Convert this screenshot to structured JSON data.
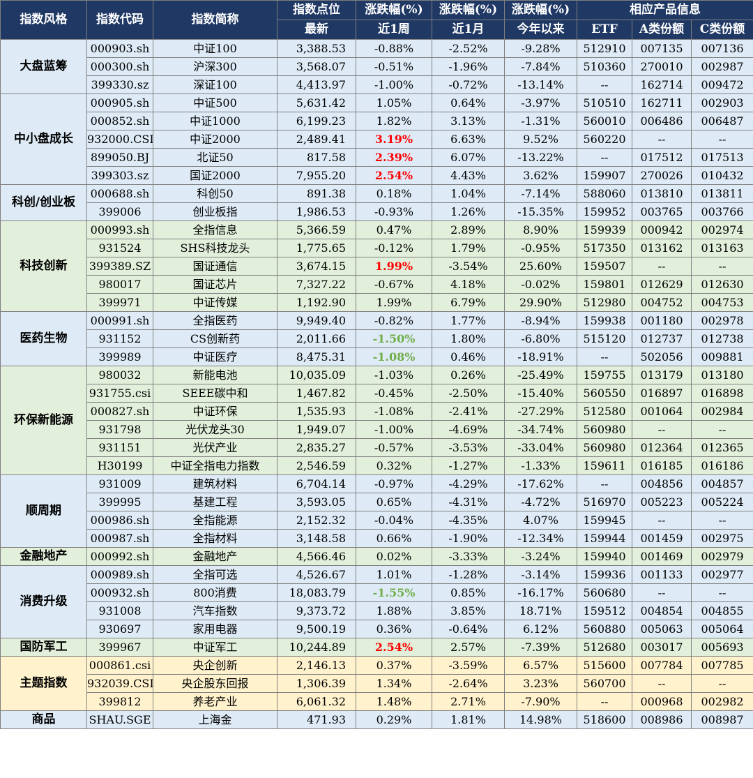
{
  "header": {
    "top": {
      "style": "指数风格",
      "code": "指数代码",
      "name": "指数简称",
      "point": "指数点位",
      "chg1": "涨跌幅(%)",
      "chg2": "涨跌幅(%)",
      "chg3": "涨跌幅(%)",
      "product": "相应产品信息"
    },
    "sub": {
      "point": "最新",
      "week": "近1周",
      "month": "近1月",
      "ytd": "今年以来",
      "etf": "ETF",
      "a": "A类份额",
      "c": "C类份额"
    }
  },
  "colors": {
    "header_bg": "#1f3864",
    "blue_band": "#deebf7",
    "green_band": "#e2efda",
    "yellow_band": "#fff2cc",
    "up_highlight": "#ff0000",
    "down_highlight": "#70ad47"
  },
  "groups": [
    {
      "style": "大盘蓝筹",
      "band": "blue",
      "rows": [
        {
          "code": "000903.sh",
          "name": "中证100",
          "point": "3,388.53",
          "week": "-0.88%",
          "month": "-2.52%",
          "ytd": "-9.28%",
          "etf": "512910",
          "a": "007135",
          "c": "007136"
        },
        {
          "code": "000300.sh",
          "name": "沪深300",
          "point": "3,568.07",
          "week": "-0.51%",
          "month": "-1.96%",
          "ytd": "-7.84%",
          "etf": "510360",
          "a": "270010",
          "c": "002987"
        },
        {
          "code": "399330.sz",
          "name": "深证100",
          "point": "4,413.97",
          "week": "-1.00%",
          "month": "-0.72%",
          "ytd": "-13.14%",
          "etf": "--",
          "a": "162714",
          "c": "009472"
        }
      ]
    },
    {
      "style": "中小盘成长",
      "band": "blue",
      "rows": [
        {
          "code": "000905.sh",
          "name": "中证500",
          "point": "5,631.42",
          "week": "1.05%",
          "month": "0.64%",
          "ytd": "-3.97%",
          "etf": "510510",
          "a": "162711",
          "c": "002903"
        },
        {
          "code": "000852.sh",
          "name": "中证1000",
          "point": "6,199.23",
          "week": "1.82%",
          "month": "3.13%",
          "ytd": "-1.31%",
          "etf": "560010",
          "a": "006486",
          "c": "006487"
        },
        {
          "code": "932000.CSI",
          "name": "中证2000",
          "point": "2,489.41",
          "week": "3.19%",
          "week_hl": "up",
          "month": "6.63%",
          "ytd": "9.52%",
          "etf": "560220",
          "a": "--",
          "c": "--"
        },
        {
          "code": "899050.BJ",
          "name": "北证50",
          "point": "817.58",
          "week": "2.39%",
          "week_hl": "up",
          "month": "6.07%",
          "ytd": "-13.22%",
          "etf": "--",
          "a": "017512",
          "c": "017513"
        },
        {
          "code": "399303.sz",
          "name": "国证2000",
          "point": "7,955.20",
          "week": "2.54%",
          "week_hl": "up",
          "month": "4.43%",
          "ytd": "3.62%",
          "etf": "159907",
          "a": "270026",
          "c": "010432"
        }
      ]
    },
    {
      "style": "科创/创业板",
      "band": "blue",
      "rows": [
        {
          "code": "000688.sh",
          "name": "科创50",
          "point": "891.38",
          "week": "0.18%",
          "month": "1.04%",
          "ytd": "-7.14%",
          "etf": "588060",
          "a": "013810",
          "c": "013811"
        },
        {
          "code": "399006",
          "name": "创业板指",
          "point": "1,986.53",
          "week": "-0.93%",
          "month": "1.26%",
          "ytd": "-15.35%",
          "etf": "159952",
          "a": "003765",
          "c": "003766"
        }
      ]
    },
    {
      "style": "科技创新",
      "band": "green",
      "rows": [
        {
          "code": "000993.sh",
          "name": "全指信息",
          "point": "5,366.59",
          "week": "0.47%",
          "month": "2.89%",
          "ytd": "8.90%",
          "etf": "159939",
          "a": "000942",
          "c": "002974"
        },
        {
          "code": "931524",
          "name": "SHS科技龙头",
          "point": "1,775.65",
          "week": "-0.12%",
          "month": "1.79%",
          "ytd": "-0.95%",
          "etf": "517350",
          "a": "013162",
          "c": "013163"
        },
        {
          "code": "399389.SZ",
          "name": "国证通信",
          "point": "3,674.15",
          "week": "1.99%",
          "week_hl": "up",
          "month": "-3.54%",
          "ytd": "25.60%",
          "etf": "159507",
          "a": "--",
          "c": "--"
        },
        {
          "code": "980017",
          "name": "国证芯片",
          "point": "7,327.22",
          "week": "-0.67%",
          "month": "4.18%",
          "ytd": "-0.02%",
          "etf": "159801",
          "a": "012629",
          "c": "012630"
        },
        {
          "code": "399971",
          "name": "中证传媒",
          "point": "1,192.90",
          "week": "1.99%",
          "month": "6.79%",
          "ytd": "29.90%",
          "etf": "512980",
          "a": "004752",
          "c": "004753"
        }
      ]
    },
    {
      "style": "医药生物",
      "band": "blue",
      "rows": [
        {
          "code": "000991.sh",
          "name": "全指医药",
          "point": "9,949.40",
          "week": "-0.82%",
          "month": "1.77%",
          "ytd": "-8.94%",
          "etf": "159938",
          "a": "001180",
          "c": "002978"
        },
        {
          "code": "931152",
          "name": "CS创新药",
          "point": "2,011.66",
          "week": "-1.50%",
          "week_hl": "down",
          "month": "1.80%",
          "ytd": "-6.80%",
          "etf": "515120",
          "a": "012737",
          "c": "012738"
        },
        {
          "code": "399989",
          "name": "中证医疗",
          "point": "8,475.31",
          "week": "-1.08%",
          "week_hl": "down",
          "month": "0.46%",
          "ytd": "-18.91%",
          "etf": "--",
          "a": "502056",
          "c": "009881"
        }
      ]
    },
    {
      "style": "环保新能源",
      "band": "green",
      "rows": [
        {
          "code": "980032",
          "name": "新能电池",
          "point": "10,035.09",
          "week": "-1.03%",
          "month": "0.26%",
          "ytd": "-25.49%",
          "etf": "159755",
          "a": "013179",
          "c": "013180"
        },
        {
          "code": "931755.csi",
          "name": "SEEE碳中和",
          "point": "1,467.82",
          "week": "-0.45%",
          "month": "-2.50%",
          "ytd": "-15.40%",
          "etf": "560550",
          "a": "016897",
          "c": "016898"
        },
        {
          "code": "000827.sh",
          "name": "中证环保",
          "point": "1,535.93",
          "week": "-1.08%",
          "month": "-2.41%",
          "ytd": "-27.29%",
          "etf": "512580",
          "a": "001064",
          "c": "002984"
        },
        {
          "code": "931798",
          "name": "光伏龙头30",
          "point": "1,949.07",
          "week": "-1.00%",
          "month": "-4.69%",
          "ytd": "-34.74%",
          "etf": "560980",
          "a": "--",
          "c": "--"
        },
        {
          "code": "931151",
          "name": "光伏产业",
          "point": "2,835.27",
          "week": "-0.57%",
          "month": "-3.53%",
          "ytd": "-33.04%",
          "etf": "560980",
          "a": "012364",
          "c": "012365"
        },
        {
          "code": "H30199",
          "name": "中证全指电力指数",
          "point": "2,546.59",
          "week": "0.32%",
          "month": "-1.27%",
          "ytd": "-1.33%",
          "etf": "159611",
          "a": "016185",
          "c": "016186"
        }
      ]
    },
    {
      "style": "顺周期",
      "band": "blue",
      "rows": [
        {
          "code": "931009",
          "name": "建筑材料",
          "point": "6,704.14",
          "week": "-0.97%",
          "month": "-4.29%",
          "ytd": "-17.62%",
          "etf": "--",
          "a": "004856",
          "c": "004857"
        },
        {
          "code": "399995",
          "name": "基建工程",
          "point": "3,593.05",
          "week": "0.65%",
          "month": "-4.31%",
          "ytd": "-4.72%",
          "etf": "516970",
          "a": "005223",
          "c": "005224"
        },
        {
          "code": "000986.sh",
          "name": "全指能源",
          "point": "2,152.32",
          "week": "-0.04%",
          "month": "-4.35%",
          "ytd": "4.07%",
          "etf": "159945",
          "a": "--",
          "c": "--"
        },
        {
          "code": "000987.sh",
          "name": "全指材料",
          "point": "3,148.58",
          "week": "0.66%",
          "month": "-1.90%",
          "ytd": "-12.34%",
          "etf": "159944",
          "a": "001459",
          "c": "002975"
        }
      ]
    },
    {
      "style": "金融地产",
      "band": "green",
      "rows": [
        {
          "code": "000992.sh",
          "name": "金融地产",
          "point": "4,566.46",
          "week": "0.02%",
          "month": "-3.33%",
          "ytd": "-3.24%",
          "etf": "159940",
          "a": "001469",
          "c": "002979"
        }
      ]
    },
    {
      "style": "消费升级",
      "band": "blue",
      "rows": [
        {
          "code": "000989.sh",
          "name": "全指可选",
          "point": "4,526.67",
          "week": "1.01%",
          "month": "-1.28%",
          "ytd": "-3.14%",
          "etf": "159936",
          "a": "001133",
          "c": "002977"
        },
        {
          "code": "000932.sh",
          "name": "800消费",
          "point": "18,083.79",
          "week": "-1.55%",
          "week_hl": "down",
          "month": "0.85%",
          "ytd": "-16.17%",
          "etf": "560680",
          "a": "--",
          "c": "--"
        },
        {
          "code": "931008",
          "name": "汽车指数",
          "point": "9,373.72",
          "week": "1.88%",
          "month": "3.85%",
          "ytd": "18.71%",
          "etf": "159512",
          "a": "004854",
          "c": "004855"
        },
        {
          "code": "930697",
          "name": "家用电器",
          "point": "9,500.19",
          "week": "0.36%",
          "month": "-0.64%",
          "ytd": "6.12%",
          "etf": "560880",
          "a": "005063",
          "c": "005064"
        }
      ]
    },
    {
      "style": "国防军工",
      "band": "green",
      "rows": [
        {
          "code": "399967",
          "name": "中证军工",
          "point": "10,244.89",
          "week": "2.54%",
          "week_hl": "up",
          "month": "2.57%",
          "ytd": "-7.39%",
          "etf": "512680",
          "a": "003017",
          "c": "005693"
        }
      ]
    },
    {
      "style": "主题指数",
      "band": "yellow",
      "rows": [
        {
          "code": "000861.csi",
          "name": "央企创新",
          "point": "2,146.13",
          "week": "0.37%",
          "month": "-3.59%",
          "ytd": "6.57%",
          "etf": "515600",
          "a": "007784",
          "c": "007785"
        },
        {
          "code": "932039.CSI",
          "name": "央企股东回报",
          "point": "1,306.39",
          "week": "1.34%",
          "month": "-2.64%",
          "ytd": "3.23%",
          "etf": "560700",
          "a": "--",
          "c": "--"
        },
        {
          "code": "399812",
          "name": "养老产业",
          "point": "6,061.32",
          "week": "1.48%",
          "month": "2.71%",
          "ytd": "-7.90%",
          "etf": "--",
          "a": "000968",
          "c": "002982"
        }
      ]
    },
    {
      "style": "商品",
      "band": "blue",
      "rows": [
        {
          "code": "SHAU.SGE",
          "name": "上海金",
          "point": "471.93",
          "week": "0.29%",
          "month": "1.81%",
          "ytd": "14.98%",
          "etf": "518600",
          "a": "008986",
          "c": "008987"
        }
      ]
    }
  ]
}
